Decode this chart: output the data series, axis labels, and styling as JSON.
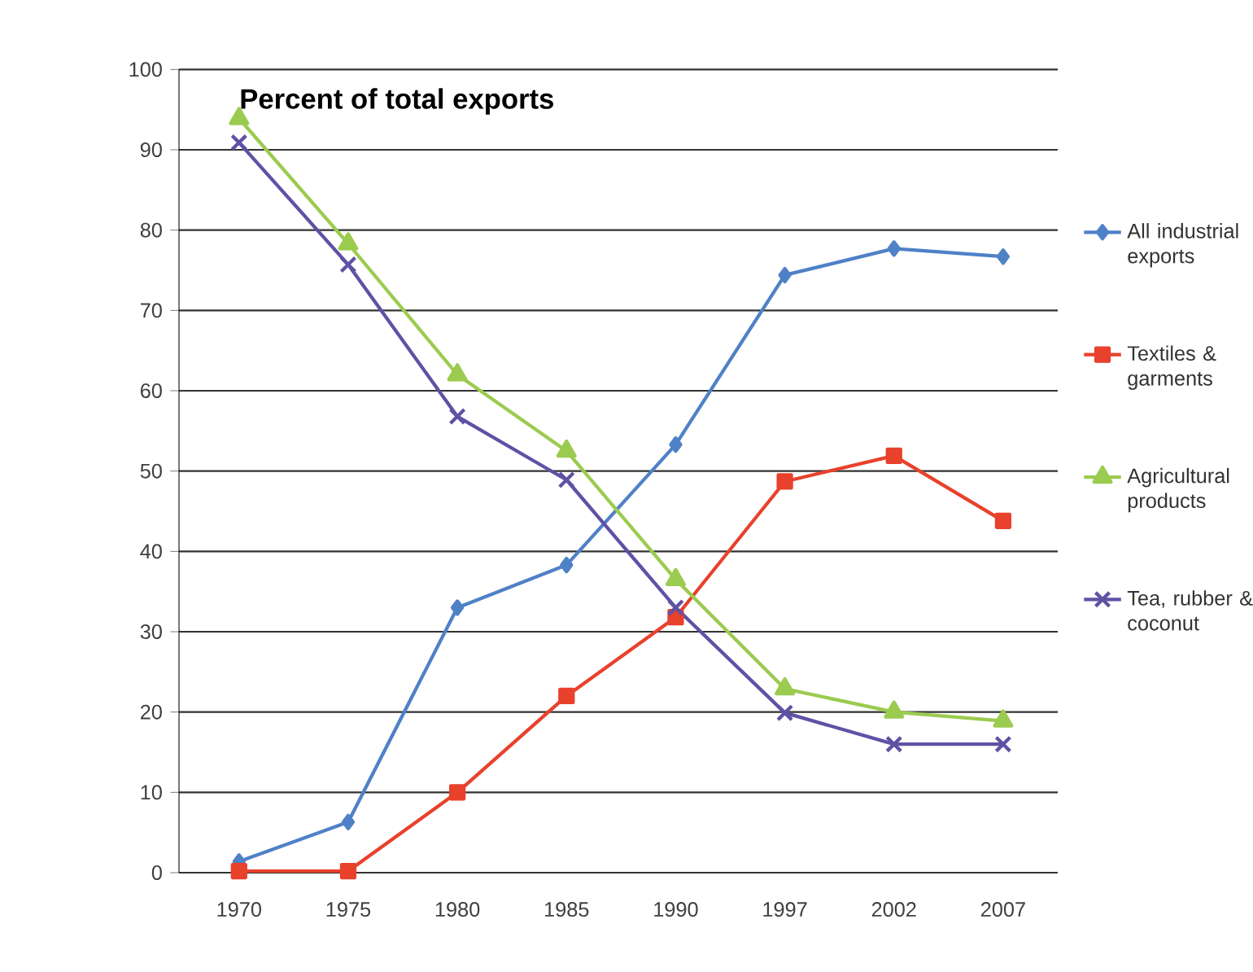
{
  "chart_data": {
    "type": "line",
    "title": "Percent of total exports",
    "categories": [
      "1970",
      "1975",
      "1980",
      "1985",
      "1990",
      "1997",
      "2002",
      "2007"
    ],
    "series": [
      {
        "name": "All industrial exports",
        "color": "#4f81c7",
        "marker": "diamond",
        "values": [
          1.4,
          6.3,
          33,
          38.3,
          53.3,
          74.4,
          77.7,
          76.7
        ]
      },
      {
        "name": "Textiles & garments",
        "color": "#e8412c",
        "marker": "square",
        "values": [
          0.2,
          0.2,
          10,
          22,
          31.8,
          48.7,
          51.9,
          43.8
        ]
      },
      {
        "name": "Agricultural products",
        "color": "#9bcb4f",
        "marker": "triangle",
        "values": [
          93.9,
          78.3,
          62,
          52.5,
          36.5,
          22.9,
          20,
          18.9
        ]
      },
      {
        "name": "Tea, rubber & coconut",
        "color": "#6051a5",
        "marker": "cross",
        "values": [
          90.9,
          75.7,
          56.8,
          48.9,
          33,
          19.9,
          16,
          16
        ]
      }
    ],
    "ylim": [
      0,
      100
    ],
    "yticks": [
      0,
      10,
      20,
      30,
      40,
      50,
      60,
      70,
      80,
      90,
      100
    ],
    "grid": "y",
    "legend": "right",
    "line_style": "solid"
  }
}
